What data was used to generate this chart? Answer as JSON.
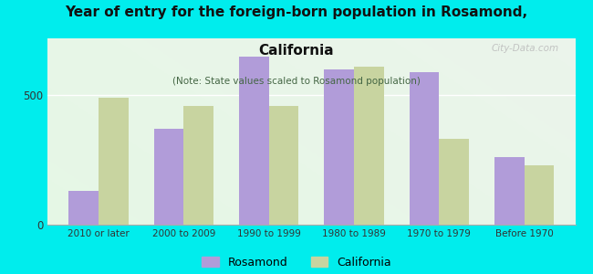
{
  "categories": [
    "2010 or later",
    "2000 to 2009",
    "1990 to 1999",
    "1980 to 1989",
    "1970 to 1979",
    "Before 1970"
  ],
  "rosamond_values": [
    130,
    370,
    650,
    600,
    590,
    260
  ],
  "california_values": [
    490,
    460,
    460,
    610,
    330,
    230
  ],
  "rosamond_color": "#b19cd9",
  "california_color": "#c8d4a0",
  "title_line1": "Year of entry for the foreign-born population in Rosamond,",
  "title_line2": "California",
  "subtitle": "(Note: State values scaled to Rosamond population)",
  "background_color": "#00eded",
  "legend_rosamond": "Rosamond",
  "legend_california": "California",
  "watermark": "City-Data.com",
  "bar_width": 0.35,
  "ylim": [
    0,
    720
  ],
  "yticks": [
    0,
    500
  ]
}
